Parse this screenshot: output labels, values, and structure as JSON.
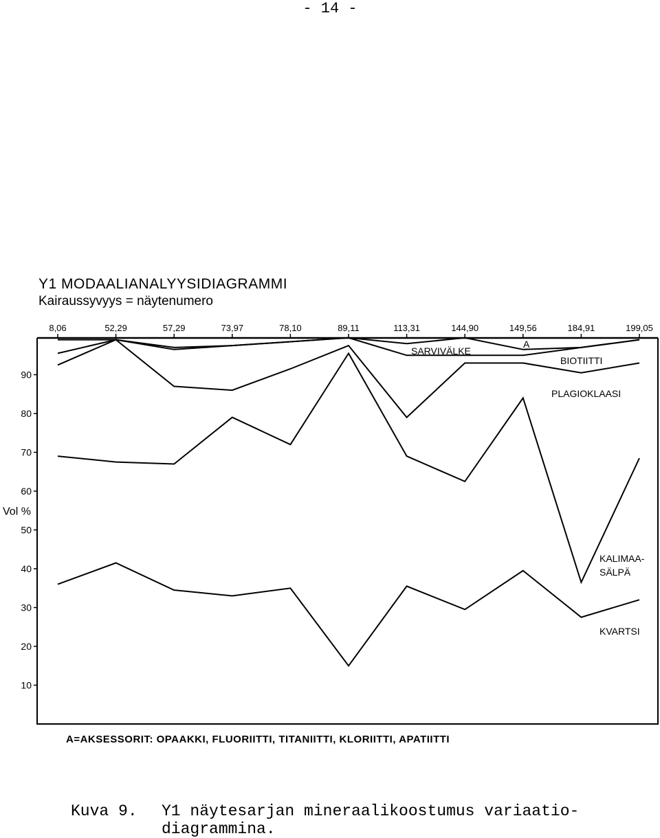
{
  "page_number": "- 14 -",
  "chart_data": {
    "type": "area",
    "title": "Y1 MODAALIANALYYSIDIAGRAMMI",
    "subtitle": "Kairaussyvyys = näytenumero",
    "ylabel": "Vol %",
    "ylim": [
      0,
      100
    ],
    "yticks": [
      10,
      20,
      30,
      40,
      50,
      60,
      70,
      80,
      90
    ],
    "categories": [
      "8,06",
      "52,29",
      "57,29",
      "73,97",
      "78,10",
      "89,11",
      "113,31",
      "144,90",
      "149,56",
      "184,91",
      "199,05"
    ],
    "series": [
      {
        "name": "KVARTSI",
        "values": [
          36,
          41.5,
          34.5,
          33,
          35,
          15,
          35.5,
          29.5,
          39.5,
          27.5,
          32
        ]
      },
      {
        "name": "KALIMAA-SÄLPÄ",
        "values": [
          69,
          67.5,
          67,
          79,
          72,
          95.5,
          69,
          62.5,
          84,
          36.5,
          68.5
        ]
      },
      {
        "name": "PLAGIOKLAASI",
        "values": [
          92.5,
          99,
          87,
          86,
          91.5,
          97.5,
          79,
          93,
          93,
          90.5,
          93
        ]
      },
      {
        "name": "BIOTIITTI",
        "values": [
          95.5,
          99,
          96.5,
          97.5,
          98.5,
          99.5,
          95,
          95,
          95,
          97,
          99
        ]
      },
      {
        "name": "SARVIVÄLKE",
        "values": [
          99,
          99,
          97,
          97.5,
          98.5,
          99.5,
          98,
          99.5,
          96.5,
          97,
          99
        ]
      },
      {
        "name": "A",
        "values": [
          100,
          100,
          100,
          100,
          100,
          100,
          100,
          100,
          100,
          100,
          100
        ]
      }
    ],
    "series_labels": [
      {
        "series": "KVARTSI",
        "lines": [
          "KVARTSI"
        ]
      },
      {
        "series": "KALIMAA-SÄLPÄ",
        "lines": [
          "KALIMAA-",
          "SÄLPÄ"
        ]
      },
      {
        "series": "PLAGIOKLAASI",
        "lines": [
          "PLAGIOKLAASI"
        ]
      },
      {
        "series": "BIOTIITTI",
        "lines": [
          "BIOTIITTI"
        ]
      },
      {
        "series": "SARVIVÄLKE",
        "lines": [
          "SARVIVÄLKE"
        ]
      },
      {
        "series": "A",
        "lines": [
          "A"
        ]
      }
    ],
    "grid": false,
    "footnote": "A=AKSESSORIT: OPAAKKI, FLUORIITTI, TITANIITTI, KLORIITTI, APATIITTI"
  },
  "caption": {
    "label": "Kuva 9.",
    "text": "Y1 näytesarjan mineraalikoostumus variaatio-diagrammina."
  }
}
